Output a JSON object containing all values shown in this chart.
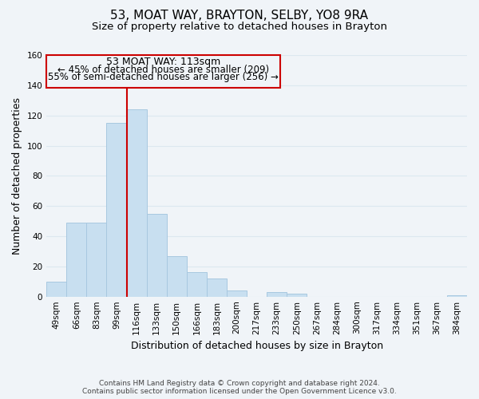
{
  "title": "53, MOAT WAY, BRAYTON, SELBY, YO8 9RA",
  "subtitle": "Size of property relative to detached houses in Brayton",
  "xlabel": "Distribution of detached houses by size in Brayton",
  "ylabel": "Number of detached properties",
  "footnote1": "Contains HM Land Registry data © Crown copyright and database right 2024.",
  "footnote2": "Contains public sector information licensed under the Open Government Licence v3.0.",
  "bar_labels": [
    "49sqm",
    "66sqm",
    "83sqm",
    "99sqm",
    "116sqm",
    "133sqm",
    "150sqm",
    "166sqm",
    "183sqm",
    "200sqm",
    "217sqm",
    "233sqm",
    "250sqm",
    "267sqm",
    "284sqm",
    "300sqm",
    "317sqm",
    "334sqm",
    "351sqm",
    "367sqm",
    "384sqm"
  ],
  "bar_values": [
    10,
    49,
    49,
    115,
    124,
    55,
    27,
    16,
    12,
    4,
    0,
    3,
    2,
    0,
    0,
    0,
    0,
    0,
    0,
    0,
    1
  ],
  "bar_color": "#c8dff0",
  "bar_edge_color": "#a8c8e0",
  "ylim": [
    0,
    160
  ],
  "yticks": [
    0,
    20,
    40,
    60,
    80,
    100,
    120,
    140,
    160
  ],
  "vline_index": 3.5,
  "property_label": "53 MOAT WAY: 113sqm",
  "annotation_line1": "← 45% of detached houses are smaller (209)",
  "annotation_line2": "55% of semi-detached houses are larger (256) →",
  "vline_color": "#cc0000",
  "background_color": "#f0f4f8",
  "grid_color": "#dce8f0",
  "title_fontsize": 11,
  "subtitle_fontsize": 9.5,
  "axis_label_fontsize": 9,
  "tick_fontsize": 7.5,
  "annotation_fontsize": 9
}
